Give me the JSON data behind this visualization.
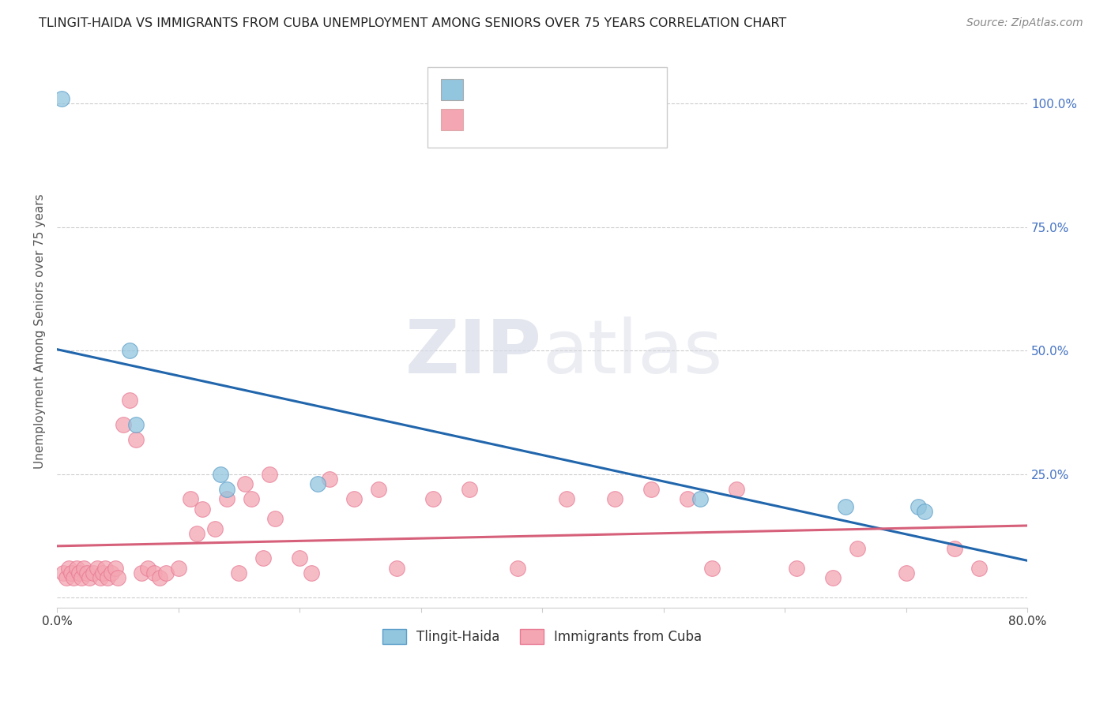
{
  "title": "TLINGIT-HAIDA VS IMMIGRANTS FROM CUBA UNEMPLOYMENT AMONG SENIORS OVER 75 YEARS CORRELATION CHART",
  "source": "Source: ZipAtlas.com",
  "ylabel": "Unemployment Among Seniors over 75 years",
  "xlim": [
    0.0,
    0.8
  ],
  "ylim": [
    -0.02,
    1.1
  ],
  "yticks_right": [
    0.0,
    0.25,
    0.5,
    0.75,
    1.0
  ],
  "ytick_labels_right": [
    "",
    "25.0%",
    "50.0%",
    "75.0%",
    "100.0%"
  ],
  "blue_color": "#92c5de",
  "pink_color": "#f4a6b2",
  "blue_edge_color": "#5a9ec9",
  "pink_edge_color": "#e87a94",
  "blue_line_color": "#2166ac",
  "pink_line_color": "#d6607a",
  "tlingit_x": [
    0.004,
    0.06,
    0.065,
    0.135,
    0.14,
    0.215,
    0.53,
    0.65,
    0.71,
    0.715
  ],
  "tlingit_y": [
    1.01,
    0.5,
    0.35,
    0.25,
    0.22,
    0.23,
    0.2,
    0.185,
    0.185,
    0.175
  ],
  "cuba_x": [
    0.005,
    0.008,
    0.01,
    0.012,
    0.014,
    0.016,
    0.018,
    0.02,
    0.022,
    0.025,
    0.027,
    0.03,
    0.033,
    0.036,
    0.038,
    0.04,
    0.042,
    0.045,
    0.048,
    0.05,
    0.055,
    0.06,
    0.065,
    0.07,
    0.075,
    0.08,
    0.085,
    0.09,
    0.1,
    0.11,
    0.115,
    0.12,
    0.13,
    0.14,
    0.15,
    0.155,
    0.16,
    0.17,
    0.175,
    0.18,
    0.2,
    0.21,
    0.225,
    0.245,
    0.265,
    0.28,
    0.31,
    0.34,
    0.38,
    0.42,
    0.46,
    0.49,
    0.52,
    0.54,
    0.56,
    0.61,
    0.64,
    0.66,
    0.7,
    0.74,
    0.76
  ],
  "cuba_y": [
    0.05,
    0.04,
    0.06,
    0.05,
    0.04,
    0.06,
    0.05,
    0.04,
    0.06,
    0.05,
    0.04,
    0.05,
    0.06,
    0.04,
    0.05,
    0.06,
    0.04,
    0.05,
    0.06,
    0.04,
    0.35,
    0.4,
    0.32,
    0.05,
    0.06,
    0.05,
    0.04,
    0.05,
    0.06,
    0.2,
    0.13,
    0.18,
    0.14,
    0.2,
    0.05,
    0.23,
    0.2,
    0.08,
    0.25,
    0.16,
    0.08,
    0.05,
    0.24,
    0.2,
    0.22,
    0.06,
    0.2,
    0.22,
    0.06,
    0.2,
    0.2,
    0.22,
    0.2,
    0.06,
    0.22,
    0.06,
    0.04,
    0.1,
    0.05,
    0.1,
    0.06
  ],
  "legend_label_blue": "Tlingit-Haida",
  "legend_label_pink": "Immigrants from Cuba",
  "watermark_zip": "ZIP",
  "watermark_atlas": "atlas",
  "background_color": "#ffffff",
  "grid_color": "#cccccc"
}
